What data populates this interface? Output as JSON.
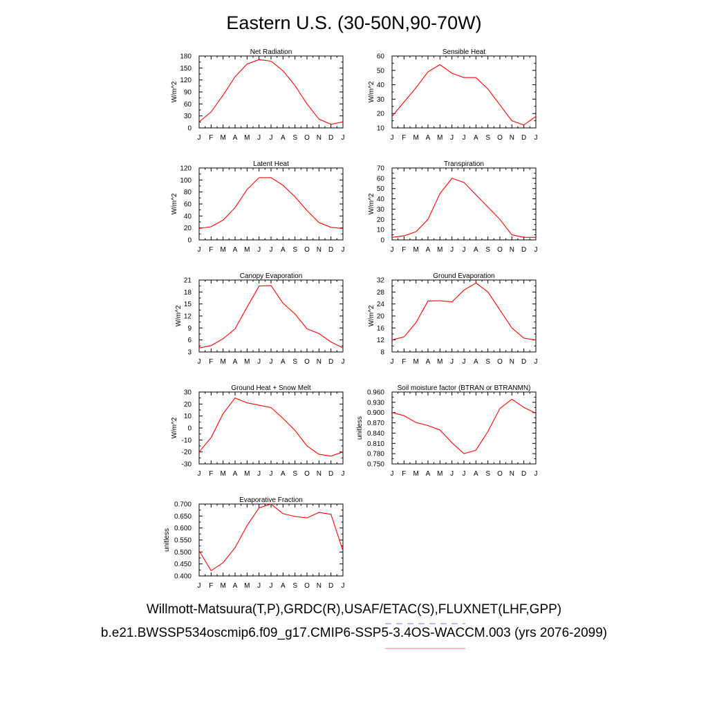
{
  "title": "Eastern U.S. (30-50N,90-70W)",
  "legend": {
    "observations": "Willmott-Matsuura(T,P),GRDC(R),USAF/ETAC(S),FLUXNET(LHF,GPP)",
    "model": "b.e21.BWSSP534oscmip6.f09_g17.CMIP6-SSP5-3.4OS-WACCM.003 (yrs 2076-2099)",
    "observations_color": "#7a7af0",
    "model_color": "#f07a7a"
  },
  "line_color": "#ff0000",
  "months": [
    "J",
    "F",
    "M",
    "A",
    "M",
    "J",
    "J",
    "A",
    "S",
    "O",
    "N",
    "D",
    "J"
  ],
  "chart_data": [
    {
      "type": "line",
      "title": "Net Radiation",
      "ylabel": "W/m^2",
      "ylim": [
        0,
        180
      ],
      "yticks": [
        0,
        30,
        60,
        90,
        120,
        150,
        180
      ],
      "ytick_labels": [
        "0",
        "30",
        "60",
        "90",
        "120",
        "150",
        "180"
      ],
      "values": [
        15,
        40,
        82,
        128,
        160,
        171,
        167,
        143,
        106,
        60,
        22,
        9,
        15
      ]
    },
    {
      "type": "line",
      "title": "Sensible Heat",
      "ylabel": "W/m^2",
      "ylim": [
        10,
        60
      ],
      "yticks": [
        10,
        20,
        30,
        40,
        50,
        60
      ],
      "ytick_labels": [
        "10",
        "20",
        "30",
        "40",
        "50",
        "60"
      ],
      "values": [
        18,
        28,
        38,
        49,
        54,
        48,
        45,
        45,
        37,
        26,
        15,
        12,
        18
      ]
    },
    {
      "type": "line",
      "title": "Latent Heat",
      "ylabel": "W/m^2",
      "ylim": [
        0,
        120
      ],
      "yticks": [
        0,
        20,
        40,
        60,
        80,
        100,
        120
      ],
      "ytick_labels": [
        "0",
        "20",
        "40",
        "60",
        "80",
        "100",
        "120"
      ],
      "values": [
        19,
        22,
        33,
        54,
        84,
        104,
        104,
        91,
        72,
        49,
        29,
        21,
        19
      ]
    },
    {
      "type": "line",
      "title": "Transpiration",
      "ylabel": "W/m^2",
      "ylim": [
        0,
        70
      ],
      "yticks": [
        0,
        10,
        20,
        30,
        40,
        50,
        60,
        70
      ],
      "ytick_labels": [
        "0",
        "10",
        "20",
        "30",
        "40",
        "50",
        "60",
        "70"
      ],
      "values": [
        2.5,
        4,
        8,
        20,
        45,
        60,
        56,
        44,
        32,
        20,
        5,
        2.5,
        2.5
      ]
    },
    {
      "type": "line",
      "title": "Canopy Evaporation",
      "ylabel": "W/m^2",
      "ylim": [
        3,
        21
      ],
      "yticks": [
        3,
        6,
        9,
        12,
        15,
        18,
        21
      ],
      "ytick_labels": [
        "3",
        "6",
        "9",
        "12",
        "15",
        "18",
        "21"
      ],
      "values": [
        4,
        4.6,
        6.3,
        8.8,
        14.2,
        19.5,
        19.6,
        15.2,
        12.5,
        8.8,
        7.6,
        5.5,
        4
      ]
    },
    {
      "type": "line",
      "title": "Ground Evaporation",
      "ylabel": "W/m^2",
      "ylim": [
        8,
        32
      ],
      "yticks": [
        8,
        12,
        16,
        20,
        24,
        28,
        32
      ],
      "ytick_labels": [
        "8",
        "12",
        "16",
        "20",
        "24",
        "28",
        "32"
      ],
      "values": [
        12,
        13,
        17.8,
        25,
        25.1,
        24.7,
        28.6,
        31,
        28,
        22,
        16,
        12.6,
        12
      ]
    },
    {
      "type": "line",
      "title": "Ground Heat + Snow Melt",
      "ylabel": "W/m^2",
      "ylim": [
        -30,
        30
      ],
      "yticks": [
        -30,
        -20,
        -10,
        0,
        10,
        20,
        30
      ],
      "ytick_labels": [
        "-30",
        "-20",
        "-10",
        "0",
        "10",
        "20",
        "30"
      ],
      "values": [
        -20,
        -8,
        12,
        25,
        21,
        19,
        17,
        8,
        -2,
        -15,
        -22,
        -23.5,
        -20
      ]
    },
    {
      "type": "line",
      "title": "Soil moisture factor (BTRAN or BTRANMN)",
      "ylabel": "unitless",
      "ylim": [
        0.75,
        0.96
      ],
      "yticks": [
        0.75,
        0.78,
        0.81,
        0.84,
        0.87,
        0.9,
        0.93,
        0.96
      ],
      "ytick_labels": [
        "0.750",
        "0.780",
        "0.810",
        "0.840",
        "0.870",
        "0.900",
        "0.930",
        "0.960"
      ],
      "values": [
        0.9,
        0.891,
        0.871,
        0.862,
        0.849,
        0.812,
        0.78,
        0.79,
        0.845,
        0.912,
        0.939,
        0.915,
        0.898
      ]
    },
    {
      "type": "line",
      "title": "Evaporative Fraction",
      "ylabel": "unitless",
      "ylim": [
        0.4,
        0.7
      ],
      "yticks": [
        0.4,
        0.45,
        0.5,
        0.55,
        0.6,
        0.65,
        0.7
      ],
      "ytick_labels": [
        "0.400",
        "0.450",
        "0.500",
        "0.550",
        "0.600",
        "0.650",
        "0.700"
      ],
      "values": [
        0.505,
        0.422,
        0.455,
        0.518,
        0.61,
        0.684,
        0.7,
        0.66,
        0.648,
        0.642,
        0.665,
        0.657,
        0.505
      ]
    }
  ]
}
